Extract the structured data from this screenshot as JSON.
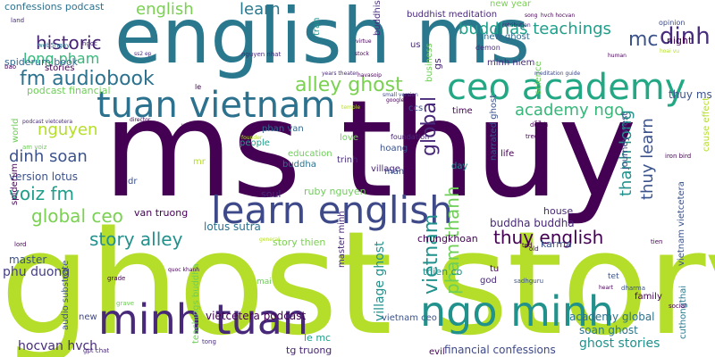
{
  "words": [
    {
      "text": "ghost story",
      "size": 160,
      "color": "#b5de2b"
    },
    {
      "text": "ms thuy",
      "size": 150,
      "color": "#440154"
    },
    {
      "text": "english ms",
      "size": 86,
      "color": "#2a788e"
    },
    {
      "text": "minh tuan",
      "size": 46,
      "color": "#482878"
    },
    {
      "text": "ngo minh",
      "size": 46,
      "color": "#21918c"
    },
    {
      "text": "learn english",
      "size": 42,
      "color": "#3e4989"
    },
    {
      "text": "ceo academy",
      "size": 40,
      "color": "#22a884"
    },
    {
      "text": "tuan vietnam",
      "size": 40,
      "color": "#2c728e"
    },
    {
      "text": "dinh",
      "size": 26,
      "color": "#472d7b"
    },
    {
      "text": "mc",
      "size": 22,
      "color": "#3b528b"
    },
    {
      "text": "historic",
      "size": 20,
      "color": "#482475"
    },
    {
      "text": "english",
      "size": 18,
      "color": "#7ad151"
    },
    {
      "text": "learn",
      "size": 18,
      "color": "#2a788e"
    },
    {
      "text": "buddhas teachings",
      "size": 18,
      "color": "#1f9e89"
    },
    {
      "text": "fm audiobook",
      "size": 22,
      "color": "#2c728e"
    },
    {
      "text": "alley ghost",
      "size": 22,
      "color": "#7ad151"
    },
    {
      "text": "long pham",
      "size": 16,
      "color": "#35b779"
    },
    {
      "text": "academy ngo",
      "size": 18,
      "color": "#35b779"
    },
    {
      "text": "nguyen",
      "size": 18,
      "color": "#b5de2b"
    },
    {
      "text": "dinh soan",
      "size": 18,
      "color": "#3b528b"
    },
    {
      "text": "voiz fm",
      "size": 20,
      "color": "#1f9e89"
    },
    {
      "text": "global ceo",
      "size": 20,
      "color": "#7ad151"
    },
    {
      "text": "story alley",
      "size": 20,
      "color": "#21918c"
    },
    {
      "text": "thuy english",
      "size": 20,
      "color": "#440154"
    },
    {
      "text": "buddha buddha",
      "size": 12,
      "color": "#482878"
    },
    {
      "text": "phu duong",
      "size": 14,
      "color": "#433e85"
    },
    {
      "text": "master",
      "size": 12,
      "color": "#3b528b"
    },
    {
      "text": "vietcetera podcast",
      "size": 12,
      "color": "#440154"
    },
    {
      "text": "hocvan hvch",
      "size": 14,
      "color": "#472d7b"
    },
    {
      "text": "financial confessions",
      "size": 12,
      "color": "#3e4989"
    },
    {
      "text": "ghost stories",
      "size": 14,
      "color": "#21918c"
    },
    {
      "text": "soan ghost",
      "size": 12,
      "color": "#2a788e"
    },
    {
      "text": "academy global",
      "size": 12,
      "color": "#2c728e"
    },
    {
      "text": "confessions podcast",
      "size": 11,
      "color": "#2c728e"
    },
    {
      "text": "spiderum book",
      "size": 11,
      "color": "#31688e"
    },
    {
      "text": "stories",
      "size": 10,
      "color": "#440154"
    },
    {
      "text": "podcast financial",
      "size": 11,
      "color": "#6ece58"
    },
    {
      "text": "version lotus",
      "size": 12,
      "color": "#3b528b"
    },
    {
      "text": "lotus sutra",
      "size": 12,
      "color": "#2c728e"
    },
    {
      "text": "van truong",
      "size": 11,
      "color": "#440154"
    },
    {
      "text": "story thien",
      "size": 11,
      "color": "#7ad151"
    },
    {
      "text": "house",
      "size": 11,
      "color": "#482878"
    },
    {
      "text": "karma",
      "size": 11,
      "color": "#3b528b"
    },
    {
      "text": "thien co",
      "size": 11,
      "color": "#21918c"
    },
    {
      "text": "chungkhoan",
      "size": 11,
      "color": "#440154"
    },
    {
      "text": "ruby nguyen",
      "size": 11,
      "color": "#6ece58"
    },
    {
      "text": "phan van",
      "size": 10,
      "color": "#31688e"
    },
    {
      "text": "people",
      "size": 10,
      "color": "#1f9e89"
    },
    {
      "text": "education",
      "size": 10,
      "color": "#6ece58"
    },
    {
      "text": "buddha",
      "size": 10,
      "color": "#2c728e"
    },
    {
      "text": "tg truong",
      "size": 11,
      "color": "#482475"
    },
    {
      "text": "le mc",
      "size": 11,
      "color": "#1f9e89"
    },
    {
      "text": "thuy ms",
      "size": 12,
      "color": "#3b528b"
    },
    {
      "text": "night",
      "size": 11,
      "color": "#440154"
    },
    {
      "text": "minh niem",
      "size": 10,
      "color": "#472d7b"
    },
    {
      "text": "new ghost",
      "size": 10,
      "color": "#31688e"
    },
    {
      "text": "buddhist meditation",
      "size": 10,
      "color": "#482878"
    },
    {
      "text": "new year",
      "size": 10,
      "color": "#7ad151"
    },
    {
      "text": "time",
      "size": 10,
      "color": "#440154"
    },
    {
      "text": "love",
      "size": 10,
      "color": "#6ece58"
    },
    {
      "text": "hoang",
      "size": 10,
      "color": "#3b528b"
    },
    {
      "text": "soul",
      "size": 11,
      "color": "#482878"
    },
    {
      "text": "day",
      "size": 10,
      "color": "#21918c"
    },
    {
      "text": "evil",
      "size": 10,
      "color": "#440154"
    },
    {
      "text": "village",
      "size": 10,
      "color": "#482878"
    },
    {
      "text": "trinh",
      "size": 10,
      "color": "#472d7b"
    },
    {
      "text": "foundation",
      "size": 8,
      "color": "#482878"
    },
    {
      "text": "family",
      "size": 10,
      "color": "#440154"
    },
    {
      "text": "god",
      "size": 10,
      "color": "#482878"
    },
    {
      "text": "tu",
      "size": 10,
      "color": "#440154"
    },
    {
      "text": "tet",
      "size": 9,
      "color": "#3b528b"
    },
    {
      "text": "new",
      "size": 10,
      "color": "#3e4989"
    },
    {
      "text": "mai",
      "size": 9,
      "color": "#6ece58"
    },
    {
      "text": "mr",
      "size": 10,
      "color": "#b5de2b"
    },
    {
      "text": "man",
      "size": 10,
      "color": "#3b528b"
    },
    {
      "text": "dr",
      "size": 10,
      "color": "#3b528b"
    },
    {
      "text": "ccs",
      "size": 10,
      "color": "#3b528b"
    },
    {
      "text": "us",
      "size": 10,
      "color": "#482878"
    },
    {
      "text": "le",
      "size": 8,
      "color": "#440154"
    },
    {
      "text": "life",
      "size": 10,
      "color": "#440154"
    },
    {
      "text": "vietnam ceo",
      "size": 10,
      "color": "#3b528b"
    }
  ],
  "small_words": [
    "land",
    "web5ngay",
    "ngoc",
    "ss2 ep",
    "bao",
    "podcast vietcetera",
    "am voiz",
    "world",
    "lord",
    "general",
    "sadhguru",
    "grade",
    "gpt chat",
    "tong",
    "quoc khanh",
    "nguyen nhat",
    "years theater",
    "havasoip",
    "small version",
    "google",
    "temple",
    "director",
    "uncle",
    "founder",
    "cause effect",
    "iron bird",
    "la",
    "tien",
    "old",
    "grave",
    "heart",
    "dharma",
    "social",
    "human",
    "opinion",
    "hoai vu",
    "song",
    "hvch hocvan",
    "demon",
    "retribution",
    "meditation guide",
    "sa",
    "tree",
    "death",
    "virtue",
    "stock",
    "tran",
    "buddhist",
    "science",
    "business",
    "ted"
  ]
}
